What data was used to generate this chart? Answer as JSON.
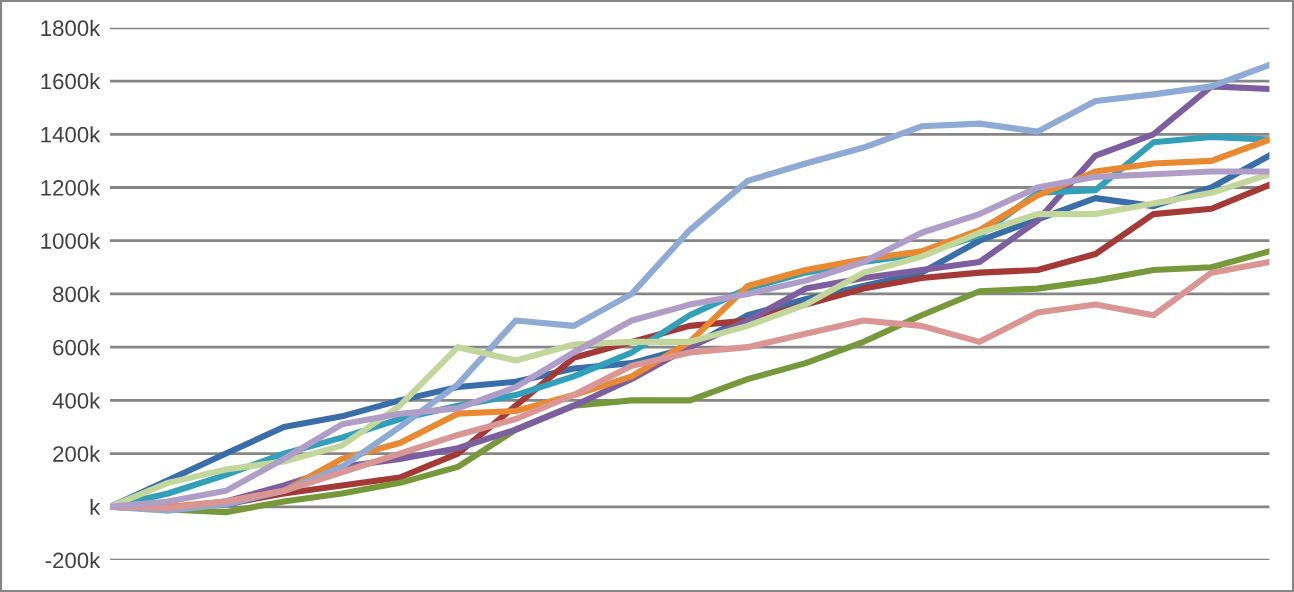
{
  "chart_data": {
    "type": "line",
    "categories": [
      null,
      null,
      null,
      null,
      null,
      null,
      null,
      null,
      null,
      null,
      null,
      null,
      null,
      null,
      null,
      null,
      null,
      null,
      null,
      null,
      null
    ],
    "ylim": [
      -200,
      1800
    ],
    "yticks": [
      {
        "value": -200,
        "label": "-200k"
      },
      {
        "value": 0,
        "label": "k"
      },
      {
        "value": 200,
        "label": "200k"
      },
      {
        "value": 400,
        "label": "400k"
      },
      {
        "value": 600,
        "label": "600k"
      },
      {
        "value": 800,
        "label": "800k"
      },
      {
        "value": 1000,
        "label": "1000k"
      },
      {
        "value": 1200,
        "label": "1200k"
      },
      {
        "value": 1400,
        "label": "1400k"
      },
      {
        "value": 1600,
        "label": "1600k"
      },
      {
        "value": 1800,
        "label": "1800k"
      }
    ],
    "grid": "y",
    "legend": false,
    "marker": "none",
    "line_style": "solid",
    "series": [
      {
        "color": "#3a6ea8",
        "values": [
          0,
          100,
          200,
          300,
          340,
          400,
          450,
          470,
          520,
          540,
          600,
          720,
          780,
          830,
          880,
          1000,
          1080,
          1160,
          1130,
          1200,
          1320
        ]
      },
      {
        "color": "#a33a38",
        "values": [
          0,
          -10,
          10,
          50,
          80,
          110,
          200,
          380,
          560,
          620,
          680,
          700,
          760,
          820,
          860,
          880,
          890,
          950,
          1100,
          1120,
          1210
        ]
      },
      {
        "color": "#77993c",
        "values": [
          0,
          -10,
          -20,
          20,
          50,
          90,
          150,
          290,
          380,
          400,
          400,
          480,
          540,
          620,
          720,
          810,
          820,
          850,
          890,
          900,
          960
        ]
      },
      {
        "color": "#7d5fa0",
        "values": [
          0,
          -5,
          20,
          80,
          150,
          180,
          220,
          290,
          380,
          480,
          600,
          700,
          820,
          860,
          890,
          920,
          1075,
          1320,
          1400,
          1580,
          1570
        ]
      },
      {
        "color": "#31a0b8",
        "values": [
          0,
          50,
          120,
          200,
          260,
          330,
          380,
          420,
          490,
          580,
          720,
          820,
          880,
          920,
          950,
          1020,
          1180,
          1190,
          1370,
          1390,
          1380
        ]
      },
      {
        "color": "#e98a33",
        "values": [
          0,
          0,
          20,
          60,
          180,
          240,
          350,
          360,
          420,
          490,
          620,
          830,
          890,
          930,
          960,
          1040,
          1170,
          1260,
          1290,
          1300,
          1380
        ]
      },
      {
        "color": "#8eaad5",
        "values": [
          0,
          -15,
          10,
          60,
          150,
          300,
          460,
          700,
          680,
          800,
          1040,
          1225,
          1290,
          1350,
          1430,
          1440,
          1410,
          1525,
          1550,
          1580,
          1660
        ]
      },
      {
        "color": "#d99694",
        "values": [
          0,
          -5,
          20,
          60,
          130,
          200,
          270,
          330,
          420,
          530,
          580,
          600,
          650,
          700,
          680,
          620,
          730,
          760,
          720,
          880,
          920
        ]
      },
      {
        "color": "#c3d69b",
        "values": [
          0,
          90,
          140,
          170,
          230,
          380,
          600,
          550,
          610,
          620,
          620,
          680,
          760,
          880,
          940,
          1030,
          1100,
          1100,
          1140,
          1180,
          1250
        ]
      },
      {
        "color": "#b09ec9",
        "values": [
          0,
          20,
          60,
          180,
          310,
          350,
          370,
          450,
          580,
          700,
          760,
          800,
          850,
          920,
          1030,
          1100,
          1200,
          1240,
          1250,
          1260,
          1260
        ]
      }
    ]
  }
}
